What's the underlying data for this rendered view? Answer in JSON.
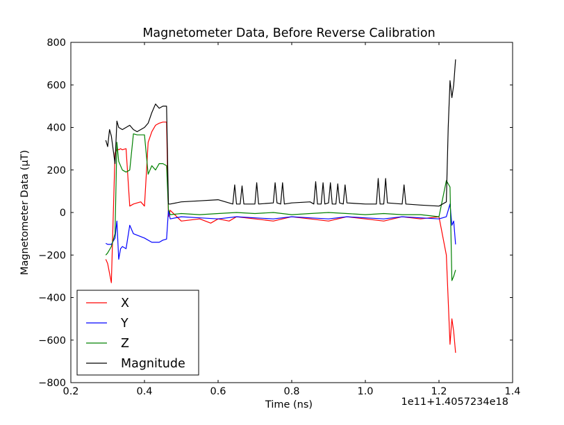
{
  "chart_data": {
    "type": "line",
    "title": "Magnetometer Data, Before Reverse Calibration",
    "xlabel": "Time (ns)",
    "ylabel": "Magnetometer Data (μT)",
    "x_offset_label": "1e11+1.4057234e18",
    "xlim": [
      0.2,
      1.4
    ],
    "ylim": [
      -800,
      800
    ],
    "x_ticks": [
      0.2,
      0.4,
      0.6,
      0.8,
      1.0,
      1.2,
      1.4
    ],
    "x_tick_labels": [
      "0.2",
      "0.4",
      "0.6",
      "0.8",
      "1.0",
      "1.2",
      "1.4"
    ],
    "y_ticks": [
      -800,
      -600,
      -400,
      -200,
      0,
      200,
      400,
      600,
      800
    ],
    "y_tick_labels": [
      "−800",
      "−600",
      "−400",
      "−200",
      "0",
      "200",
      "400",
      "600",
      "800"
    ],
    "grid": false,
    "legend_position": "lower-left",
    "series": [
      {
        "name": "X",
        "color": "#ff0000",
        "x": [
          0.295,
          0.3,
          0.31,
          0.32,
          0.325,
          0.33,
          0.335,
          0.34,
          0.35,
          0.36,
          0.37,
          0.38,
          0.39,
          0.4,
          0.41,
          0.42,
          0.43,
          0.44,
          0.45,
          0.46,
          0.465,
          0.47,
          0.5,
          0.55,
          0.58,
          0.6,
          0.63,
          0.65,
          0.7,
          0.75,
          0.8,
          0.85,
          0.9,
          0.95,
          1.0,
          1.05,
          1.1,
          1.15,
          1.2,
          1.22,
          1.23,
          1.235,
          1.24,
          1.245
        ],
        "y": [
          -220,
          -240,
          -330,
          280,
          300,
          295,
          300,
          295,
          300,
          30,
          40,
          45,
          50,
          30,
          330,
          380,
          410,
          420,
          425,
          425,
          -20,
          10,
          -40,
          -30,
          -50,
          -30,
          -40,
          -20,
          -30,
          -40,
          -20,
          -30,
          -40,
          -20,
          -30,
          -40,
          -20,
          -30,
          -20,
          -200,
          -620,
          -500,
          -560,
          -660
        ]
      },
      {
        "name": "Y",
        "color": "#0000ff",
        "x": [
          0.295,
          0.3,
          0.31,
          0.32,
          0.325,
          0.33,
          0.335,
          0.34,
          0.35,
          0.36,
          0.37,
          0.4,
          0.42,
          0.44,
          0.45,
          0.46,
          0.465,
          0.47,
          0.5,
          0.55,
          0.6,
          0.65,
          0.7,
          0.75,
          0.8,
          0.85,
          0.9,
          0.95,
          1.0,
          1.05,
          1.1,
          1.15,
          1.2,
          1.22,
          1.23,
          1.235,
          1.24,
          1.245
        ],
        "y": [
          -145,
          -150,
          -150,
          -120,
          -40,
          -220,
          -170,
          -160,
          -170,
          -60,
          -100,
          -120,
          -140,
          -140,
          -130,
          -125,
          10,
          -30,
          -20,
          -25,
          -30,
          -20,
          -25,
          -30,
          -20,
          -25,
          -30,
          -20,
          -25,
          -30,
          -20,
          -25,
          -30,
          -20,
          40,
          -60,
          -40,
          -150
        ]
      },
      {
        "name": "Z",
        "color": "#008000",
        "x": [
          0.295,
          0.3,
          0.31,
          0.32,
          0.325,
          0.33,
          0.34,
          0.35,
          0.36,
          0.37,
          0.38,
          0.4,
          0.41,
          0.42,
          0.43,
          0.44,
          0.45,
          0.46,
          0.465,
          0.47,
          0.5,
          0.55,
          0.6,
          0.65,
          0.7,
          0.75,
          0.8,
          0.85,
          0.9,
          0.95,
          1.0,
          1.05,
          1.1,
          1.15,
          1.2,
          1.22,
          1.23,
          1.235,
          1.24,
          1.245
        ],
        "y": [
          -200,
          -190,
          -160,
          -100,
          330,
          240,
          200,
          190,
          200,
          370,
          365,
          365,
          180,
          220,
          200,
          230,
          230,
          220,
          15,
          -10,
          -5,
          -10,
          -5,
          0,
          -5,
          0,
          -10,
          -5,
          0,
          -5,
          -10,
          -5,
          -10,
          -10,
          -20,
          150,
          120,
          -320,
          -300,
          -270
        ]
      },
      {
        "name": "Magnitude",
        "color": "#000000",
        "x": [
          0.295,
          0.3,
          0.305,
          0.31,
          0.32,
          0.325,
          0.33,
          0.34,
          0.35,
          0.36,
          0.37,
          0.38,
          0.4,
          0.41,
          0.42,
          0.43,
          0.44,
          0.45,
          0.46,
          0.465,
          0.47,
          0.5,
          0.55,
          0.6,
          0.64,
          0.645,
          0.65,
          0.66,
          0.665,
          0.67,
          0.7,
          0.705,
          0.71,
          0.75,
          0.755,
          0.76,
          0.77,
          0.775,
          0.78,
          0.8,
          0.85,
          0.86,
          0.865,
          0.87,
          0.88,
          0.885,
          0.89,
          0.9,
          0.905,
          0.91,
          0.92,
          0.925,
          0.93,
          0.94,
          0.945,
          0.95,
          1.0,
          1.03,
          1.035,
          1.04,
          1.05,
          1.055,
          1.06,
          1.1,
          1.105,
          1.11,
          1.15,
          1.2,
          1.22,
          1.225,
          1.23,
          1.235,
          1.24,
          1.245
        ],
        "y": [
          340,
          310,
          390,
          360,
          230,
          430,
          400,
          390,
          400,
          410,
          390,
          380,
          400,
          420,
          470,
          510,
          490,
          500,
          500,
          40,
          40,
          50,
          55,
          60,
          40,
          130,
          40,
          40,
          125,
          40,
          40,
          140,
          40,
          45,
          140,
          45,
          40,
          140,
          40,
          45,
          50,
          40,
          145,
          40,
          40,
          140,
          40,
          45,
          140,
          40,
          40,
          135,
          45,
          40,
          130,
          45,
          40,
          40,
          160,
          40,
          40,
          160,
          45,
          40,
          130,
          40,
          35,
          30,
          50,
          400,
          620,
          540,
          600,
          720
        ]
      }
    ]
  }
}
